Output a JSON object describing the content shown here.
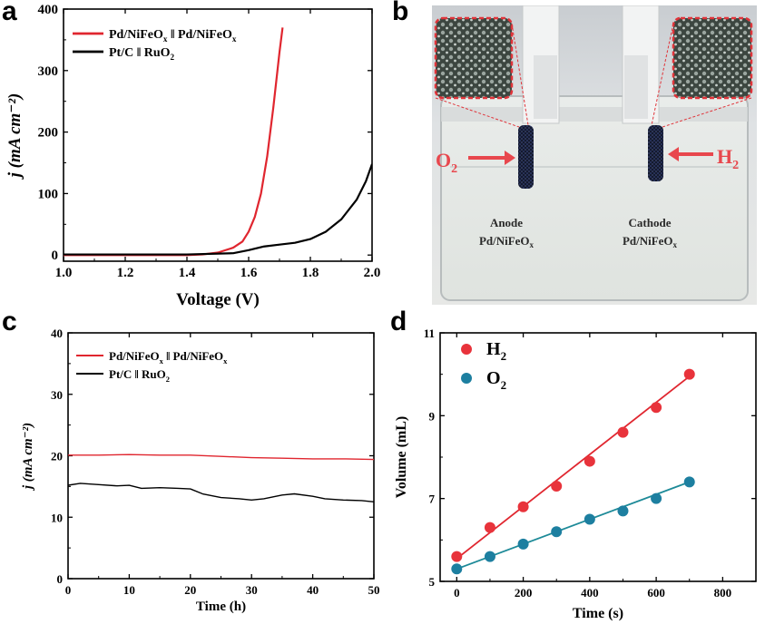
{
  "panels": {
    "a": "a",
    "b": "b",
    "c": "c",
    "d": "d"
  },
  "photo": {
    "anode_label": "Anode",
    "anode_material": "Pd/NiFeO",
    "cathode_label": "Cathode",
    "cathode_material": "Pd/NiFeO",
    "x_subscript": "x",
    "o2_label": "O",
    "h2_label": "H",
    "gas_subscript": "2"
  },
  "chart_data": [
    {
      "id": "a",
      "type": "line",
      "xlabel": "Voltage (V)",
      "ylabel": "j (mA cm⁻²)",
      "xlim": [
        1.0,
        2.0
      ],
      "ylim": [
        -10,
        400
      ],
      "xticks": [
        1.0,
        1.2,
        1.4,
        1.6,
        1.8,
        2.0
      ],
      "yticks": [
        0,
        100,
        200,
        300,
        400
      ],
      "xtick_labels": [
        "1.0",
        "1.2",
        "1.4",
        "1.6",
        "1.8",
        "2.0"
      ],
      "ytick_labels": [
        "0",
        "100",
        "200",
        "300",
        "400"
      ],
      "legend": "top-left",
      "series": [
        {
          "name": "Pd/NiFeOx ‖ Pd/NiFeOx",
          "color": "#e0262f",
          "x": [
            1.0,
            1.2,
            1.4,
            1.45,
            1.5,
            1.55,
            1.58,
            1.6,
            1.62,
            1.64,
            1.66,
            1.68,
            1.7,
            1.71
          ],
          "y": [
            0,
            0,
            0,
            1,
            4,
            12,
            22,
            38,
            62,
            100,
            160,
            240,
            330,
            370
          ]
        },
        {
          "name": "Pt/C ‖ RuO2",
          "color": "#000000",
          "x": [
            1.0,
            1.4,
            1.55,
            1.6,
            1.65,
            1.7,
            1.75,
            1.8,
            1.85,
            1.9,
            1.95,
            1.98,
            2.0
          ],
          "y": [
            1,
            1,
            3,
            8,
            14,
            17,
            20,
            26,
            38,
            58,
            90,
            120,
            148
          ]
        }
      ]
    },
    {
      "id": "c",
      "type": "line",
      "xlabel": "Time (h)",
      "ylabel": "j (mA cm⁻²)",
      "xlim": [
        0,
        50
      ],
      "ylim": [
        0,
        40
      ],
      "xticks": [
        0,
        10,
        20,
        30,
        40,
        50
      ],
      "yticks": [
        0,
        10,
        20,
        30,
        40
      ],
      "xtick_labels": [
        "0",
        "10",
        "20",
        "30",
        "40",
        "50"
      ],
      "ytick_labels": [
        "0",
        "10",
        "20",
        "30",
        "40"
      ],
      "legend": "top-left",
      "series": [
        {
          "name": "Pd/NiFeOx ‖ Pd/NiFeOx",
          "color": "#e0262f",
          "x": [
            0,
            5,
            10,
            15,
            20,
            25,
            30,
            35,
            40,
            45,
            50
          ],
          "y": [
            20.1,
            20.1,
            20.2,
            20.1,
            20.1,
            19.9,
            19.7,
            19.6,
            19.5,
            19.5,
            19.4
          ]
        },
        {
          "name": "Pt/C ‖ RuO2",
          "color": "#000000",
          "x": [
            0,
            2,
            5,
            8,
            10,
            12,
            15,
            18,
            20,
            22,
            25,
            28,
            30,
            32,
            35,
            37,
            40,
            42,
            45,
            48,
            50
          ],
          "y": [
            15.2,
            15.5,
            15.3,
            15.1,
            15.2,
            14.7,
            14.8,
            14.7,
            14.6,
            13.8,
            13.2,
            13.0,
            12.8,
            13.0,
            13.6,
            13.8,
            13.4,
            13.0,
            12.8,
            12.7,
            12.5
          ]
        }
      ]
    },
    {
      "id": "d",
      "type": "scatter",
      "xlabel": "Time (s)",
      "ylabel": "Volume (mL)",
      "xlim": [
        -50,
        900
      ],
      "ylim": [
        5,
        11
      ],
      "xticks": [
        0,
        200,
        400,
        600,
        800
      ],
      "yticks": [
        5,
        7,
        9,
        11
      ],
      "xtick_labels": [
        "0",
        "200",
        "400",
        "600",
        "800"
      ],
      "ytick_labels": [
        "5",
        "7",
        "9",
        "11"
      ],
      "legend": "top-left",
      "series": [
        {
          "name": "H2",
          "color": "#e8333b",
          "line_color": "#e0262f",
          "x": [
            0,
            100,
            200,
            300,
            400,
            500,
            600,
            700
          ],
          "y": [
            5.6,
            6.3,
            6.8,
            7.3,
            7.9,
            8.6,
            9.2,
            10.0
          ],
          "fit": [
            [
              0,
              5.55
            ],
            [
              700,
              9.95
            ]
          ]
        },
        {
          "name": "O2",
          "color": "#1d7fa0",
          "line_color": "#1d8a98",
          "x": [
            0,
            100,
            200,
            300,
            400,
            500,
            600,
            700
          ],
          "y": [
            5.3,
            5.6,
            5.9,
            6.2,
            6.5,
            6.7,
            7.0,
            7.4
          ],
          "fit": [
            [
              0,
              5.3
            ],
            [
              700,
              7.4
            ]
          ]
        }
      ]
    }
  ]
}
